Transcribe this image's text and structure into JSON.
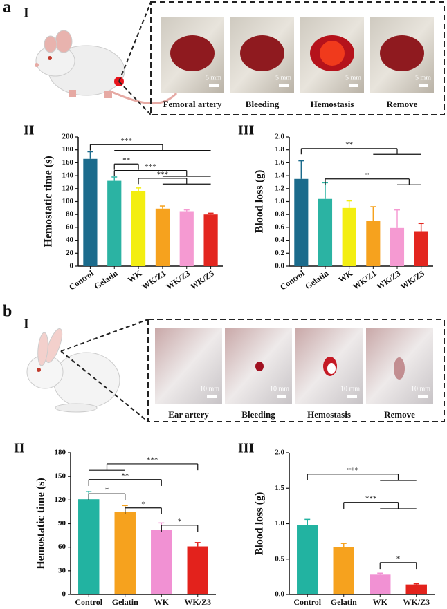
{
  "panels": [
    {
      "label": "a",
      "sub_label": "I",
      "photos": [
        {
          "caption": "Femoral artery",
          "scale": "5 mm"
        },
        {
          "caption": "Bleeding",
          "scale": "5 mm"
        },
        {
          "caption": "Hemostasis",
          "scale": "5 mm"
        },
        {
          "caption": "Remove",
          "scale": "5 mm"
        }
      ]
    },
    {
      "label": "b",
      "sub_label": "I",
      "photos": [
        {
          "caption": "Ear artery",
          "scale": "10 mm"
        },
        {
          "caption": "Bleeding",
          "scale": "10 mm"
        },
        {
          "caption": "Hemostasis",
          "scale": "10 mm"
        },
        {
          "caption": "Remove",
          "scale": "10 mm"
        }
      ]
    }
  ],
  "chart_data": [
    {
      "type": "bar",
      "label": "II",
      "ylabel": "Hemostatic time (s)",
      "categories": [
        "Control",
        "Gelatin",
        "WK",
        "WK/Z1",
        "WK/Z3",
        "WK/Z5"
      ],
      "values": [
        166,
        132,
        116,
        89,
        85,
        80
      ],
      "errors": [
        11,
        6,
        5,
        4,
        2,
        2
      ],
      "colors": [
        "#1b6b8c",
        "#2bb3a3",
        "#f3ee10",
        "#f6a21e",
        "#f59ad2",
        "#e3261f"
      ],
      "ylim": [
        0,
        200
      ],
      "yticks": [
        0,
        20,
        40,
        60,
        80,
        100,
        120,
        140,
        160,
        180,
        200
      ],
      "annotations": [
        "***",
        "**",
        "***",
        "***"
      ]
    },
    {
      "type": "bar",
      "label": "III",
      "ylabel": "Blood loss (g)",
      "categories": [
        "Control",
        "Gelatin",
        "WK",
        "WK/Z1",
        "WK/Z3",
        "WK/Z5"
      ],
      "values": [
        1.35,
        1.04,
        0.9,
        0.7,
        0.59,
        0.54
      ],
      "errors": [
        0.28,
        0.25,
        0.11,
        0.22,
        0.28,
        0.12
      ],
      "colors": [
        "#1b6b8c",
        "#2bb3a3",
        "#f3ee10",
        "#f6a21e",
        "#f59ad2",
        "#e3261f"
      ],
      "ylim": [
        0,
        2
      ],
      "yticks": [
        {
          "value": 0,
          "label": "0.0"
        },
        0.2,
        0.4,
        0.6,
        0.8,
        {
          "value": 1,
          "label": "1.0"
        },
        1.2,
        1.4,
        1.6,
        1.8,
        {
          "value": 2,
          "label": "2.0"
        }
      ],
      "annotations": [
        "**",
        "*"
      ]
    },
    {
      "type": "bar",
      "label": "II",
      "ylabel": "Hemostatic time (s)",
      "categories": [
        "Control",
        "Gelatin",
        "WK",
        "WK/Z3"
      ],
      "values": [
        121,
        105,
        82,
        61
      ],
      "errors": [
        10,
        8,
        9,
        5
      ],
      "colors": [
        "#22b3a1",
        "#f6a21e",
        "#f191d3",
        "#e3221c"
      ],
      "ylim": [
        0,
        180
      ],
      "yticks": [
        0,
        30,
        60,
        90,
        120,
        150,
        180
      ],
      "annotations": [
        "***",
        "**",
        "*",
        "*",
        "*"
      ]
    },
    {
      "type": "bar",
      "label": "III",
      "ylabel": "Blood loss (g)",
      "categories": [
        "Control",
        "Gelatin",
        "WK",
        "WK/Z3"
      ],
      "values": [
        0.98,
        0.67,
        0.28,
        0.14
      ],
      "errors": [
        0.08,
        0.05,
        0.02,
        0.01
      ],
      "colors": [
        "#22b3a1",
        "#f6a21e",
        "#f191d3",
        "#e3221c"
      ],
      "ylim": [
        0,
        2
      ],
      "yticks": [
        {
          "value": 0,
          "label": "0.0"
        },
        0.5,
        {
          "value": 1,
          "label": "1.0"
        },
        1.5,
        {
          "value": 2,
          "label": "2.0"
        }
      ],
      "annotations": [
        "***",
        "***",
        "*"
      ]
    }
  ]
}
